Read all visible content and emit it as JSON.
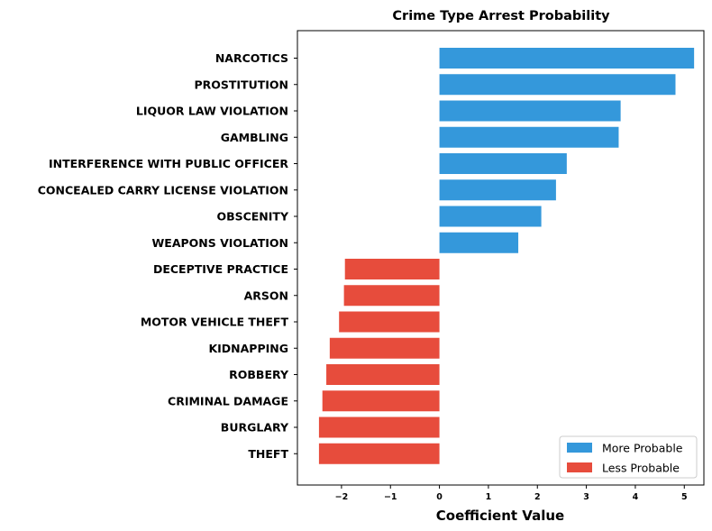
{
  "chart_data": {
    "type": "bar",
    "orientation": "horizontal",
    "title": "Crime Type Arrest Probability",
    "xlabel": "Coefficient Value",
    "ylabel": "",
    "xlim": [
      -2.9,
      5.4
    ],
    "xticks": [
      -2,
      -1,
      0,
      1,
      2,
      3,
      4,
      5
    ],
    "xtick_labels": [
      "−2",
      "−1",
      "0",
      "1",
      "2",
      "3",
      "4",
      "5"
    ],
    "grid": false,
    "legend_position": "lower-right",
    "categories": [
      "NARCOTICS",
      "PROSTITUTION",
      "LIQUOR LAW VIOLATION",
      "GAMBLING",
      "INTERFERENCE WITH PUBLIC OFFICER",
      "CONCEALED CARRY LICENSE VIOLATION",
      "OBSCENITY",
      "WEAPONS VIOLATION",
      "DECEPTIVE PRACTICE",
      "ARSON",
      "MOTOR VEHICLE THEFT",
      "KIDNAPPING",
      "ROBBERY",
      "CRIMINAL DAMAGE",
      "BURGLARY",
      "THEFT"
    ],
    "values": [
      5.2,
      4.82,
      3.7,
      3.66,
      2.6,
      2.38,
      2.08,
      1.61,
      -1.93,
      -1.95,
      -2.05,
      -2.24,
      -2.31,
      -2.39,
      -2.46,
      -2.46
    ],
    "series": [
      {
        "name": "More Probable",
        "color": "#3498db"
      },
      {
        "name": "Less Probable",
        "color": "#e74c3c"
      }
    ]
  }
}
